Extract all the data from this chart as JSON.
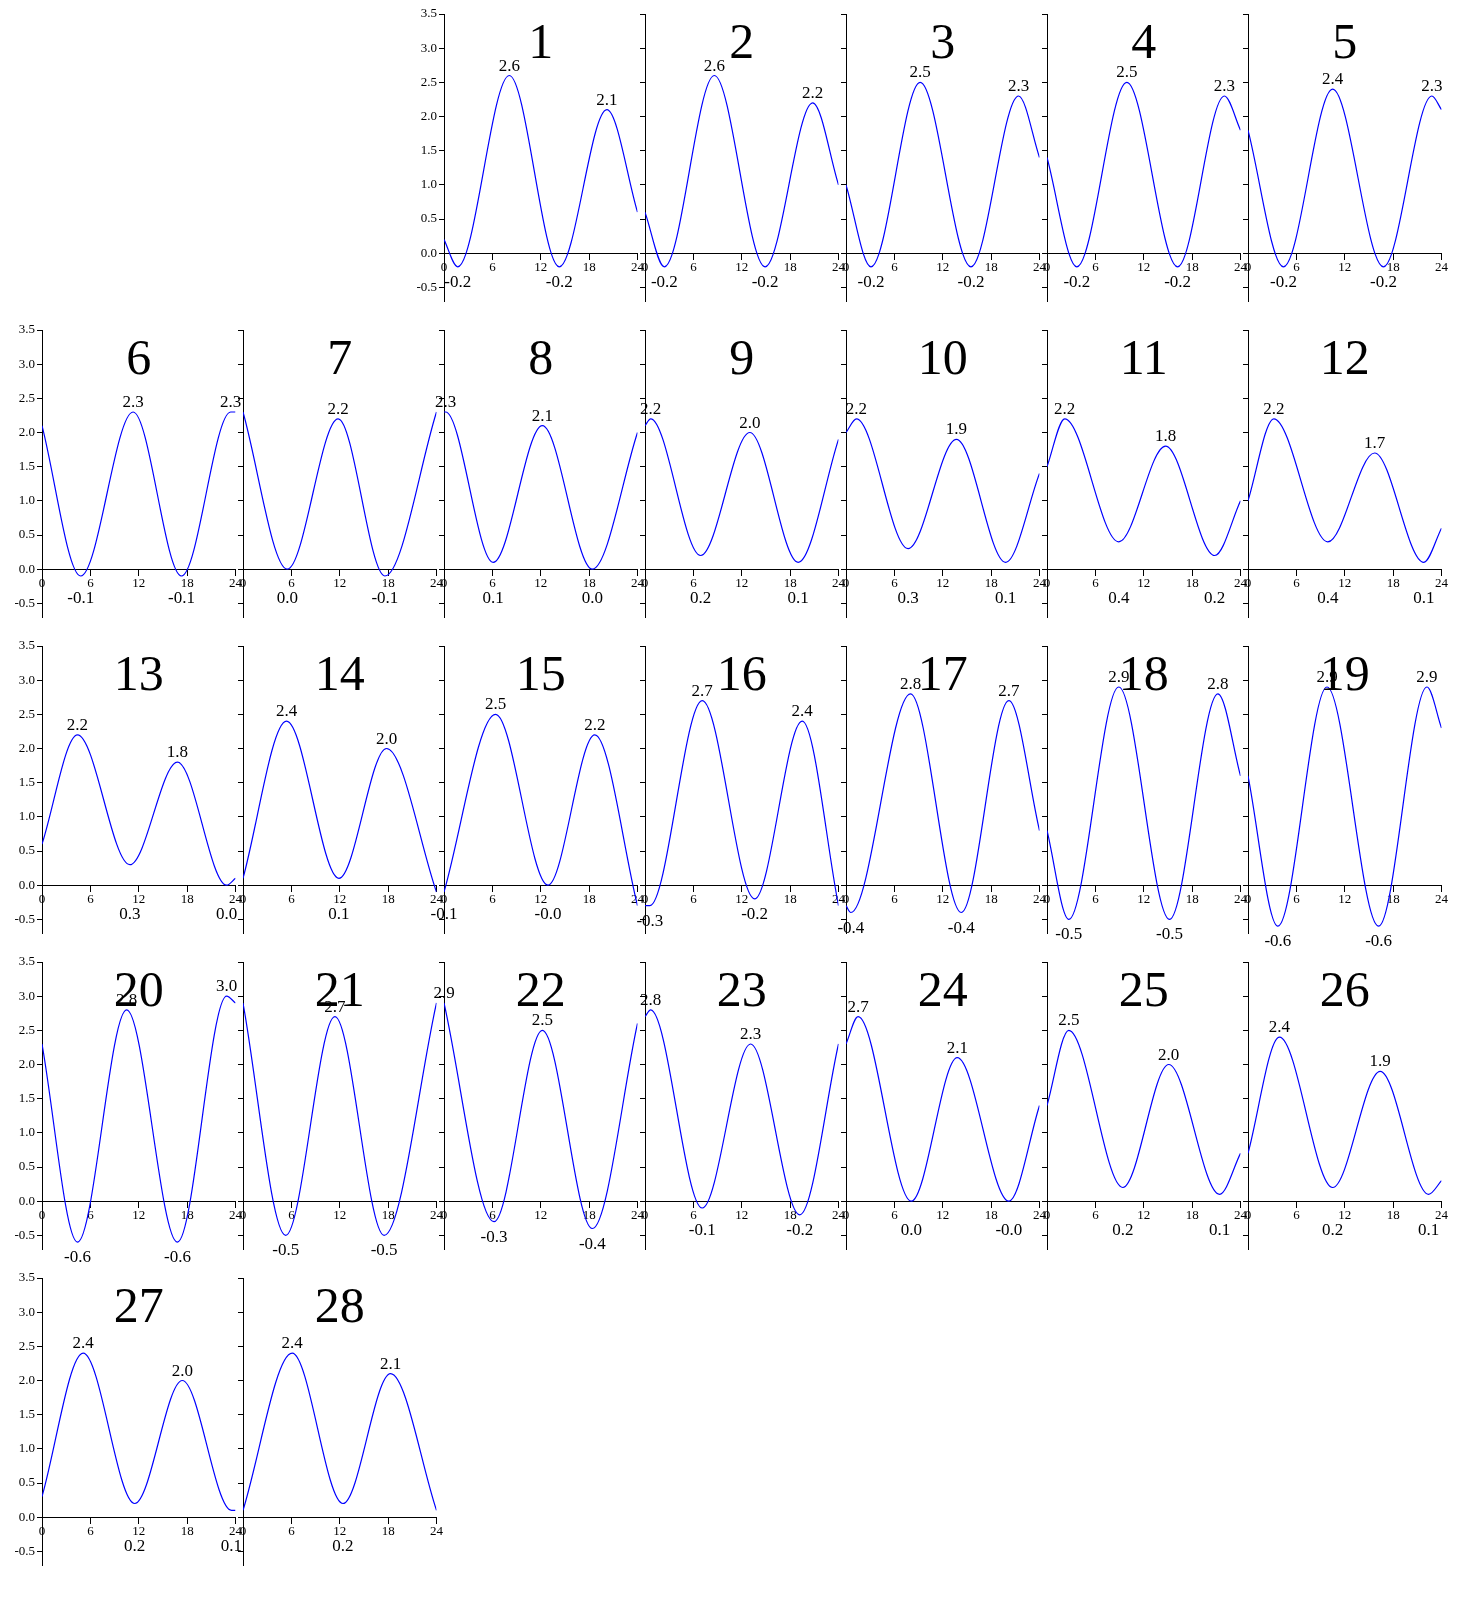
{
  "chart_data": [
    {
      "type": "line",
      "title": "1",
      "x": [
        0,
        1.7,
        8.1,
        14.3,
        20.2,
        24
      ],
      "values": [
        0.2,
        -0.2,
        2.6,
        -0.2,
        2.1,
        0.6
      ],
      "value_labels": [
        null,
        "-0.2",
        "2.6",
        "-0.2",
        "2.1",
        null
      ],
      "color": "#0000ff",
      "xlim": [
        0,
        24
      ],
      "xticks": [
        0,
        6,
        12,
        18,
        24
      ],
      "ylim": [
        -0.7,
        3.5
      ],
      "yticks": [
        {
          "value": -0.5,
          "label": "-0.5"
        },
        {
          "value": 0,
          "label": "0.0"
        },
        {
          "value": 0.5,
          "label": "0.5"
        },
        {
          "value": 1,
          "label": "1.0"
        },
        {
          "value": 1.5,
          "label": "1.5"
        },
        {
          "value": 2,
          "label": "2.0"
        },
        {
          "value": 2.5,
          "label": "2.5"
        },
        {
          "value": 3,
          "label": "3.0"
        },
        {
          "value": 3.5,
          "label": "3.5"
        }
      ]
    },
    {
      "type": "line",
      "title": "2",
      "x": [
        0,
        2.4,
        8.6,
        14.9,
        20.8,
        24
      ],
      "values": [
        0.6,
        -0.2,
        2.6,
        -0.2,
        2.2,
        1.0
      ],
      "value_labels": [
        null,
        "-0.2",
        "2.6",
        "-0.2",
        "2.2",
        null
      ],
      "color": "#0000ff",
      "xlim": [
        0,
        24
      ],
      "xticks": [
        0,
        6,
        12,
        18,
        24
      ],
      "ylim": [
        -0.7,
        3.5
      ],
      "yticks": [
        {
          "value": -0.5,
          "label": null
        },
        {
          "value": 0,
          "label": null
        },
        {
          "value": 0.5,
          "label": null
        },
        {
          "value": 1,
          "label": null
        },
        {
          "value": 1.5,
          "label": null
        },
        {
          "value": 2,
          "label": null
        },
        {
          "value": 2.5,
          "label": null
        },
        {
          "value": 3,
          "label": null
        },
        {
          "value": 3.5,
          "label": null
        }
      ],
      "tick_labels": "x"
    },
    {
      "type": "line",
      "title": "3",
      "x": [
        0,
        3.1,
        9.2,
        15.5,
        21.4,
        24
      ],
      "values": [
        1.0,
        -0.2,
        2.5,
        -0.2,
        2.3,
        1.4
      ],
      "value_labels": [
        null,
        "-0.2",
        "2.5",
        "-0.2",
        "2.3",
        null
      ],
      "color": "#0000ff",
      "xlim": [
        0,
        24
      ],
      "xticks": [
        0,
        6,
        12,
        18,
        24
      ],
      "ylim": [
        -0.7,
        3.5
      ],
      "yticks": [
        {
          "value": -0.5,
          "label": null
        },
        {
          "value": 0,
          "label": null
        },
        {
          "value": 0.5,
          "label": null
        },
        {
          "value": 1,
          "label": null
        },
        {
          "value": 1.5,
          "label": null
        },
        {
          "value": 2,
          "label": null
        },
        {
          "value": 2.5,
          "label": null
        },
        {
          "value": 3,
          "label": null
        },
        {
          "value": 3.5,
          "label": null
        }
      ],
      "tick_labels": "x"
    },
    {
      "type": "line",
      "title": "4",
      "x": [
        0,
        3.7,
        9.9,
        16.2,
        22.0,
        24
      ],
      "values": [
        1.4,
        -0.2,
        2.5,
        -0.2,
        2.3,
        1.8
      ],
      "value_labels": [
        null,
        "-0.2",
        "2.5",
        "-0.2",
        "2.3",
        null
      ],
      "color": "#0000ff",
      "xlim": [
        0,
        24
      ],
      "xticks": [
        0,
        6,
        12,
        18,
        24
      ],
      "ylim": [
        -0.7,
        3.5
      ],
      "yticks": [
        {
          "value": -0.5,
          "label": null
        },
        {
          "value": 0,
          "label": null
        },
        {
          "value": 0.5,
          "label": null
        },
        {
          "value": 1,
          "label": null
        },
        {
          "value": 1.5,
          "label": null
        },
        {
          "value": 2,
          "label": null
        },
        {
          "value": 2.5,
          "label": null
        },
        {
          "value": 3,
          "label": null
        },
        {
          "value": 3.5,
          "label": null
        }
      ],
      "tick_labels": "x"
    },
    {
      "type": "line",
      "title": "5",
      "x": [
        0,
        4.4,
        10.5,
        16.8,
        22.8,
        24
      ],
      "values": [
        1.8,
        -0.2,
        2.4,
        -0.2,
        2.3,
        2.1
      ],
      "value_labels": [
        null,
        "-0.2",
        "2.4",
        "-0.2",
        "2.3",
        null
      ],
      "color": "#0000ff",
      "xlim": [
        0,
        24
      ],
      "xticks": [
        0,
        6,
        12,
        18,
        24
      ],
      "ylim": [
        -0.7,
        3.5
      ],
      "yticks": [
        {
          "value": -0.5,
          "label": null
        },
        {
          "value": 0,
          "label": null
        },
        {
          "value": 0.5,
          "label": null
        },
        {
          "value": 1,
          "label": null
        },
        {
          "value": 1.5,
          "label": null
        },
        {
          "value": 2,
          "label": null
        },
        {
          "value": 2.5,
          "label": null
        },
        {
          "value": 3,
          "label": null
        },
        {
          "value": 3.5,
          "label": null
        }
      ],
      "tick_labels": "x"
    },
    {
      "type": "line",
      "title": "6",
      "x": [
        0,
        4.8,
        11.3,
        17.3,
        23.4,
        24
      ],
      "values": [
        2.1,
        -0.1,
        2.3,
        -0.1,
        2.3,
        2.3
      ],
      "value_labels": [
        null,
        "-0.1",
        "2.3",
        "-0.1",
        "2.3",
        null
      ],
      "color": "#0000ff",
      "xlim": [
        0,
        24
      ],
      "xticks": [
        0,
        6,
        12,
        18,
        24
      ],
      "ylim": [
        -0.7,
        3.5
      ],
      "yticks": [
        {
          "value": -0.5,
          "label": "-0.5"
        },
        {
          "value": 0,
          "label": "0.0"
        },
        {
          "value": 0.5,
          "label": "0.5"
        },
        {
          "value": 1,
          "label": "1.0"
        },
        {
          "value": 1.5,
          "label": "1.5"
        },
        {
          "value": 2,
          "label": "2.0"
        },
        {
          "value": 2.5,
          "label": "2.5"
        },
        {
          "value": 3,
          "label": "3.0"
        },
        {
          "value": 3.5,
          "label": "3.5"
        }
      ]
    },
    {
      "type": "line",
      "title": "7",
      "x": [
        0,
        5.5,
        11.8,
        17.6,
        24
      ],
      "values": [
        2.3,
        0.0,
        2.2,
        -0.1,
        2.3
      ],
      "value_labels": [
        null,
        "0.0",
        "2.2",
        "-0.1",
        null
      ],
      "color": "#0000ff",
      "xlim": [
        0,
        24
      ],
      "xticks": [
        0,
        6,
        12,
        18,
        24
      ],
      "ylim": [
        -0.7,
        3.5
      ],
      "yticks": [
        {
          "value": -0.5,
          "label": null
        },
        {
          "value": 0,
          "label": null
        },
        {
          "value": 0.5,
          "label": null
        },
        {
          "value": 1,
          "label": null
        },
        {
          "value": 1.5,
          "label": null
        },
        {
          "value": 2,
          "label": null
        },
        {
          "value": 2.5,
          "label": null
        },
        {
          "value": 3,
          "label": null
        },
        {
          "value": 3.5,
          "label": null
        }
      ],
      "tick_labels": "x"
    },
    {
      "type": "line",
      "title": "8",
      "x": [
        0,
        0.2,
        6.1,
        12.2,
        18.4,
        24
      ],
      "values": [
        2.3,
        2.3,
        0.1,
        2.1,
        0.0,
        2.0
      ],
      "value_labels": [
        null,
        "2.3",
        "0.1",
        "2.1",
        "0.0",
        null
      ],
      "color": "#0000ff",
      "xlim": [
        0,
        24
      ],
      "xticks": [
        0,
        6,
        12,
        18,
        24
      ],
      "ylim": [
        -0.7,
        3.5
      ],
      "yticks": [
        {
          "value": -0.5,
          "label": null
        },
        {
          "value": 0,
          "label": null
        },
        {
          "value": 0.5,
          "label": null
        },
        {
          "value": 1,
          "label": null
        },
        {
          "value": 1.5,
          "label": null
        },
        {
          "value": 2,
          "label": null
        },
        {
          "value": 2.5,
          "label": null
        },
        {
          "value": 3,
          "label": null
        },
        {
          "value": 3.5,
          "label": null
        }
      ],
      "tick_labels": "x"
    },
    {
      "type": "line",
      "title": "9",
      "x": [
        0,
        0.7,
        6.9,
        13.0,
        19.0,
        24
      ],
      "values": [
        2.1,
        2.2,
        0.2,
        2.0,
        0.1,
        1.9
      ],
      "value_labels": [
        null,
        "2.2",
        "0.2",
        "2.0",
        "0.1",
        null
      ],
      "color": "#0000ff",
      "xlim": [
        0,
        24
      ],
      "xticks": [
        0,
        6,
        12,
        18,
        24
      ],
      "ylim": [
        -0.7,
        3.5
      ],
      "yticks": [
        {
          "value": -0.5,
          "label": null
        },
        {
          "value": 0,
          "label": null
        },
        {
          "value": 0.5,
          "label": null
        },
        {
          "value": 1,
          "label": null
        },
        {
          "value": 1.5,
          "label": null
        },
        {
          "value": 2,
          "label": null
        },
        {
          "value": 2.5,
          "label": null
        },
        {
          "value": 3,
          "label": null
        },
        {
          "value": 3.5,
          "label": null
        }
      ],
      "tick_labels": "x"
    },
    {
      "type": "line",
      "title": "10",
      "x": [
        0,
        1.3,
        7.7,
        13.7,
        19.8,
        24
      ],
      "values": [
        2.0,
        2.2,
        0.3,
        1.9,
        0.1,
        1.4
      ],
      "value_labels": [
        null,
        "2.2",
        "0.3",
        "1.9",
        "0.1",
        null
      ],
      "color": "#0000ff",
      "xlim": [
        0,
        24
      ],
      "xticks": [
        0,
        6,
        12,
        18,
        24
      ],
      "ylim": [
        -0.7,
        3.5
      ],
      "yticks": [
        {
          "value": -0.5,
          "label": null
        },
        {
          "value": 0,
          "label": null
        },
        {
          "value": 0.5,
          "label": null
        },
        {
          "value": 1,
          "label": null
        },
        {
          "value": 1.5,
          "label": null
        },
        {
          "value": 2,
          "label": null
        },
        {
          "value": 2.5,
          "label": null
        },
        {
          "value": 3,
          "label": null
        },
        {
          "value": 3.5,
          "label": null
        }
      ],
      "tick_labels": "x"
    },
    {
      "type": "line",
      "title": "11",
      "x": [
        0,
        2.2,
        8.9,
        14.7,
        20.8,
        24
      ],
      "values": [
        1.5,
        2.2,
        0.4,
        1.8,
        0.2,
        1.0
      ],
      "value_labels": [
        null,
        "2.2",
        "0.4",
        "1.8",
        "0.2",
        null
      ],
      "color": "#0000ff",
      "xlim": [
        0,
        24
      ],
      "xticks": [
        0,
        6,
        12,
        18,
        24
      ],
      "ylim": [
        -0.7,
        3.5
      ],
      "yticks": [
        {
          "value": -0.5,
          "label": null
        },
        {
          "value": 0,
          "label": null
        },
        {
          "value": 0.5,
          "label": null
        },
        {
          "value": 1,
          "label": null
        },
        {
          "value": 1.5,
          "label": null
        },
        {
          "value": 2,
          "label": null
        },
        {
          "value": 2.5,
          "label": null
        },
        {
          "value": 3,
          "label": null
        },
        {
          "value": 3.5,
          "label": null
        }
      ],
      "tick_labels": "x"
    },
    {
      "type": "line",
      "title": "12",
      "x": [
        0,
        3.2,
        9.9,
        15.7,
        21.8,
        24
      ],
      "values": [
        1.0,
        2.2,
        0.4,
        1.7,
        0.1,
        0.6
      ],
      "value_labels": [
        null,
        "2.2",
        "0.4",
        "1.7",
        "0.1",
        null
      ],
      "color": "#0000ff",
      "xlim": [
        0,
        24
      ],
      "xticks": [
        0,
        6,
        12,
        18,
        24
      ],
      "ylim": [
        -0.7,
        3.5
      ],
      "yticks": [
        {
          "value": -0.5,
          "label": null
        },
        {
          "value": 0,
          "label": null
        },
        {
          "value": 0.5,
          "label": null
        },
        {
          "value": 1,
          "label": null
        },
        {
          "value": 1.5,
          "label": null
        },
        {
          "value": 2,
          "label": null
        },
        {
          "value": 2.5,
          "label": null
        },
        {
          "value": 3,
          "label": null
        },
        {
          "value": 3.5,
          "label": null
        }
      ],
      "tick_labels": "x"
    },
    {
      "type": "line",
      "title": "13",
      "x": [
        0,
        4.4,
        10.9,
        16.8,
        22.9,
        24
      ],
      "values": [
        0.6,
        2.2,
        0.3,
        1.8,
        0.0,
        0.1
      ],
      "value_labels": [
        null,
        "2.2",
        "0.3",
        "1.8",
        "0.0",
        null
      ],
      "color": "#0000ff",
      "xlim": [
        0,
        24
      ],
      "xticks": [
        0,
        6,
        12,
        18,
        24
      ],
      "ylim": [
        -0.7,
        3.5
      ],
      "yticks": [
        {
          "value": -0.5,
          "label": "-0.5"
        },
        {
          "value": 0,
          "label": "0.0"
        },
        {
          "value": 0.5,
          "label": "0.5"
        },
        {
          "value": 1,
          "label": "1.0"
        },
        {
          "value": 1.5,
          "label": "1.5"
        },
        {
          "value": 2,
          "label": "2.0"
        },
        {
          "value": 2.5,
          "label": "2.5"
        },
        {
          "value": 3,
          "label": "3.0"
        },
        {
          "value": 3.5,
          "label": "3.5"
        }
      ]
    },
    {
      "type": "line",
      "title": "14",
      "x": [
        0,
        5.4,
        11.9,
        17.8,
        24
      ],
      "values": [
        0.1,
        2.4,
        0.1,
        2.0,
        -0.1
      ],
      "value_labels": [
        null,
        "2.4",
        "0.1",
        "2.0",
        null
      ],
      "color": "#0000ff",
      "xlim": [
        0,
        24
      ],
      "xticks": [
        0,
        6,
        12,
        18,
        24
      ],
      "ylim": [
        -0.7,
        3.5
      ],
      "yticks": [
        {
          "value": -0.5,
          "label": null
        },
        {
          "value": 0,
          "label": null
        },
        {
          "value": 0.5,
          "label": null
        },
        {
          "value": 1,
          "label": null
        },
        {
          "value": 1.5,
          "label": null
        },
        {
          "value": 2,
          "label": null
        },
        {
          "value": 2.5,
          "label": null
        },
        {
          "value": 3,
          "label": null
        },
        {
          "value": 3.5,
          "label": null
        }
      ],
      "tick_labels": "x"
    },
    {
      "type": "line",
      "title": "15",
      "x": [
        0,
        6.4,
        12.9,
        18.7,
        24
      ],
      "values": [
        -0.1,
        2.5,
        -0.0,
        2.2,
        -0.3
      ],
      "value_labels": [
        "-0.1",
        "2.5",
        "-0.0",
        "2.2",
        null
      ],
      "color": "#0000ff",
      "xlim": [
        0,
        24
      ],
      "xticks": [
        0,
        6,
        12,
        18,
        24
      ],
      "ylim": [
        -0.7,
        3.5
      ],
      "yticks": [
        {
          "value": -0.5,
          "label": null
        },
        {
          "value": 0,
          "label": null
        },
        {
          "value": 0.5,
          "label": null
        },
        {
          "value": 1,
          "label": null
        },
        {
          "value": 1.5,
          "label": null
        },
        {
          "value": 2,
          "label": null
        },
        {
          "value": 2.5,
          "label": null
        },
        {
          "value": 3,
          "label": null
        },
        {
          "value": 3.5,
          "label": null
        }
      ],
      "tick_labels": "x"
    },
    {
      "type": "line",
      "title": "16",
      "x": [
        0,
        0.6,
        7.1,
        13.6,
        19.5,
        24
      ],
      "values": [
        -0.3,
        -0.3,
        2.7,
        -0.2,
        2.4,
        -0.3
      ],
      "value_labels": [
        null,
        "-0.3",
        "2.7",
        "-0.2",
        "2.4",
        null
      ],
      "color": "#0000ff",
      "xlim": [
        0,
        24
      ],
      "xticks": [
        0,
        6,
        12,
        18,
        24
      ],
      "ylim": [
        -0.7,
        3.5
      ],
      "yticks": [
        {
          "value": -0.5,
          "label": null
        },
        {
          "value": 0,
          "label": null
        },
        {
          "value": 0.5,
          "label": null
        },
        {
          "value": 1,
          "label": null
        },
        {
          "value": 1.5,
          "label": null
        },
        {
          "value": 2,
          "label": null
        },
        {
          "value": 2.5,
          "label": null
        },
        {
          "value": 3,
          "label": null
        },
        {
          "value": 3.5,
          "label": null
        }
      ],
      "tick_labels": "x"
    },
    {
      "type": "line",
      "title": "17",
      "x": [
        0,
        0.6,
        8.0,
        14.3,
        20.2,
        24
      ],
      "values": [
        -0.3,
        -0.4,
        2.8,
        -0.4,
        2.7,
        0.8
      ],
      "value_labels": [
        null,
        "-0.4",
        "2.8",
        "-0.4",
        "2.7",
        null
      ],
      "color": "#0000ff",
      "xlim": [
        0,
        24
      ],
      "xticks": [
        0,
        6,
        12,
        18,
        24
      ],
      "ylim": [
        -0.7,
        3.5
      ],
      "yticks": [
        {
          "value": -0.5,
          "label": null
        },
        {
          "value": 0,
          "label": null
        },
        {
          "value": 0.5,
          "label": null
        },
        {
          "value": 1,
          "label": null
        },
        {
          "value": 1.5,
          "label": null
        },
        {
          "value": 2,
          "label": null
        },
        {
          "value": 2.5,
          "label": null
        },
        {
          "value": 3,
          "label": null
        },
        {
          "value": 3.5,
          "label": null
        }
      ],
      "tick_labels": "x"
    },
    {
      "type": "line",
      "title": "18",
      "x": [
        0,
        2.7,
        8.9,
        15.2,
        21.2,
        24
      ],
      "values": [
        0.8,
        -0.5,
        2.9,
        -0.5,
        2.8,
        1.6
      ],
      "value_labels": [
        null,
        "-0.5",
        "2.9",
        "-0.5",
        "2.8",
        null
      ],
      "color": "#0000ff",
      "xlim": [
        0,
        24
      ],
      "xticks": [
        0,
        6,
        12,
        18,
        24
      ],
      "ylim": [
        -0.7,
        3.5
      ],
      "yticks": [
        {
          "value": -0.5,
          "label": null
        },
        {
          "value": 0,
          "label": null
        },
        {
          "value": 0.5,
          "label": null
        },
        {
          "value": 1,
          "label": null
        },
        {
          "value": 1.5,
          "label": null
        },
        {
          "value": 2,
          "label": null
        },
        {
          "value": 2.5,
          "label": null
        },
        {
          "value": 3,
          "label": null
        },
        {
          "value": 3.5,
          "label": null
        }
      ],
      "tick_labels": "x"
    },
    {
      "type": "line",
      "title": "19",
      "x": [
        0,
        3.7,
        9.8,
        16.2,
        22.2,
        24
      ],
      "values": [
        1.6,
        -0.6,
        2.9,
        -0.6,
        2.9,
        2.3
      ],
      "value_labels": [
        null,
        "-0.6",
        "2.9",
        "-0.6",
        "2.9",
        null
      ],
      "color": "#0000ff",
      "xlim": [
        0,
        24
      ],
      "xticks": [
        0,
        6,
        12,
        18,
        24
      ],
      "ylim": [
        -0.7,
        3.5
      ],
      "yticks": [
        {
          "value": -0.5,
          "label": null
        },
        {
          "value": 0,
          "label": null
        },
        {
          "value": 0.5,
          "label": null
        },
        {
          "value": 1,
          "label": null
        },
        {
          "value": 1.5,
          "label": null
        },
        {
          "value": 2,
          "label": null
        },
        {
          "value": 2.5,
          "label": null
        },
        {
          "value": 3,
          "label": null
        },
        {
          "value": 3.5,
          "label": null
        }
      ],
      "tick_labels": "x"
    },
    {
      "type": "line",
      "title": "20",
      "x": [
        0,
        4.4,
        10.5,
        16.8,
        22.9,
        24
      ],
      "values": [
        2.3,
        -0.6,
        2.8,
        -0.6,
        3.0,
        2.9
      ],
      "value_labels": [
        null,
        "-0.6",
        "2.8",
        "-0.6",
        "3.0",
        null
      ],
      "color": "#0000ff",
      "xlim": [
        0,
        24
      ],
      "xticks": [
        0,
        6,
        12,
        18,
        24
      ],
      "ylim": [
        -0.7,
        3.5
      ],
      "yticks": [
        {
          "value": -0.5,
          "label": "-0.5"
        },
        {
          "value": 0,
          "label": "0.0"
        },
        {
          "value": 0.5,
          "label": "0.5"
        },
        {
          "value": 1,
          "label": "1.0"
        },
        {
          "value": 1.5,
          "label": "1.5"
        },
        {
          "value": 2,
          "label": "2.0"
        },
        {
          "value": 2.5,
          "label": "2.5"
        },
        {
          "value": 3,
          "label": "3.0"
        },
        {
          "value": 3.5,
          "label": "3.5"
        }
      ]
    },
    {
      "type": "line",
      "title": "21",
      "x": [
        0,
        5.3,
        11.4,
        17.5,
        24
      ],
      "values": [
        2.9,
        -0.5,
        2.7,
        -0.5,
        2.9
      ],
      "value_labels": [
        null,
        "-0.5",
        "2.7",
        "-0.5",
        null
      ],
      "color": "#0000ff",
      "xlim": [
        0,
        24
      ],
      "xticks": [
        0,
        6,
        12,
        18,
        24
      ],
      "ylim": [
        -0.7,
        3.5
      ],
      "yticks": [
        {
          "value": -0.5,
          "label": null
        },
        {
          "value": 0,
          "label": null
        },
        {
          "value": 0.5,
          "label": null
        },
        {
          "value": 1,
          "label": null
        },
        {
          "value": 1.5,
          "label": null
        },
        {
          "value": 2,
          "label": null
        },
        {
          "value": 2.5,
          "label": null
        },
        {
          "value": 3,
          "label": null
        },
        {
          "value": 3.5,
          "label": null
        }
      ],
      "tick_labels": "x"
    },
    {
      "type": "line",
      "title": "22",
      "x": [
        0,
        6.2,
        12.2,
        18.4,
        24
      ],
      "values": [
        2.9,
        -0.3,
        2.5,
        -0.4,
        2.6
      ],
      "value_labels": [
        "2.9",
        "-0.3",
        "2.5",
        "-0.4",
        null
      ],
      "color": "#0000ff",
      "xlim": [
        0,
        24
      ],
      "xticks": [
        0,
        6,
        12,
        18,
        24
      ],
      "ylim": [
        -0.7,
        3.5
      ],
      "yticks": [
        {
          "value": -0.5,
          "label": null
        },
        {
          "value": 0,
          "label": null
        },
        {
          "value": 0.5,
          "label": null
        },
        {
          "value": 1,
          "label": null
        },
        {
          "value": 1.5,
          "label": null
        },
        {
          "value": 2,
          "label": null
        },
        {
          "value": 2.5,
          "label": null
        },
        {
          "value": 3,
          "label": null
        },
        {
          "value": 3.5,
          "label": null
        }
      ],
      "tick_labels": "x"
    },
    {
      "type": "line",
      "title": "23",
      "x": [
        0,
        0.7,
        7.1,
        13.1,
        19.2,
        24
      ],
      "values": [
        2.7,
        2.8,
        -0.1,
        2.3,
        -0.2,
        2.3
      ],
      "value_labels": [
        null,
        "2.8",
        "-0.1",
        "2.3",
        "-0.2",
        null
      ],
      "color": "#0000ff",
      "xlim": [
        0,
        24
      ],
      "xticks": [
        0,
        6,
        12,
        18,
        24
      ],
      "ylim": [
        -0.7,
        3.5
      ],
      "yticks": [
        {
          "value": -0.5,
          "label": null
        },
        {
          "value": 0,
          "label": null
        },
        {
          "value": 0.5,
          "label": null
        },
        {
          "value": 1,
          "label": null
        },
        {
          "value": 1.5,
          "label": null
        },
        {
          "value": 2,
          "label": null
        },
        {
          "value": 2.5,
          "label": null
        },
        {
          "value": 3,
          "label": null
        },
        {
          "value": 3.5,
          "label": null
        }
      ],
      "tick_labels": "x"
    },
    {
      "type": "line",
      "title": "24",
      "x": [
        0,
        1.5,
        8.1,
        13.8,
        20.2,
        24
      ],
      "values": [
        2.3,
        2.7,
        0.0,
        2.1,
        -0.0,
        1.4
      ],
      "value_labels": [
        null,
        "2.7",
        "0.0",
        "2.1",
        "-0.0",
        null
      ],
      "color": "#0000ff",
      "xlim": [
        0,
        24
      ],
      "xticks": [
        0,
        6,
        12,
        18,
        24
      ],
      "ylim": [
        -0.7,
        3.5
      ],
      "yticks": [
        {
          "value": -0.5,
          "label": null
        },
        {
          "value": 0,
          "label": null
        },
        {
          "value": 0.5,
          "label": null
        },
        {
          "value": 1,
          "label": null
        },
        {
          "value": 1.5,
          "label": null
        },
        {
          "value": 2,
          "label": null
        },
        {
          "value": 2.5,
          "label": null
        },
        {
          "value": 3,
          "label": null
        },
        {
          "value": 3.5,
          "label": null
        }
      ],
      "tick_labels": "x"
    },
    {
      "type": "line",
      "title": "25",
      "x": [
        0,
        2.7,
        9.4,
        15.1,
        21.4,
        24
      ],
      "values": [
        1.4,
        2.5,
        0.2,
        2.0,
        0.1,
        0.7
      ],
      "value_labels": [
        null,
        "2.5",
        "0.2",
        "2.0",
        "0.1",
        null
      ],
      "color": "#0000ff",
      "xlim": [
        0,
        24
      ],
      "xticks": [
        0,
        6,
        12,
        18,
        24
      ],
      "ylim": [
        -0.7,
        3.5
      ],
      "yticks": [
        {
          "value": -0.5,
          "label": null
        },
        {
          "value": 0,
          "label": null
        },
        {
          "value": 0.5,
          "label": null
        },
        {
          "value": 1,
          "label": null
        },
        {
          "value": 1.5,
          "label": null
        },
        {
          "value": 2,
          "label": null
        },
        {
          "value": 2.5,
          "label": null
        },
        {
          "value": 3,
          "label": null
        },
        {
          "value": 3.5,
          "label": null
        }
      ],
      "tick_labels": "x"
    },
    {
      "type": "line",
      "title": "26",
      "x": [
        0,
        3.9,
        10.5,
        16.4,
        22.4,
        24
      ],
      "values": [
        0.7,
        2.4,
        0.2,
        1.9,
        0.1,
        0.3
      ],
      "value_labels": [
        null,
        "2.4",
        "0.2",
        "1.9",
        "0.1",
        null
      ],
      "color": "#0000ff",
      "xlim": [
        0,
        24
      ],
      "xticks": [
        0,
        6,
        12,
        18,
        24
      ],
      "ylim": [
        -0.7,
        3.5
      ],
      "yticks": [
        {
          "value": -0.5,
          "label": null
        },
        {
          "value": 0,
          "label": null
        },
        {
          "value": 0.5,
          "label": null
        },
        {
          "value": 1,
          "label": null
        },
        {
          "value": 1.5,
          "label": null
        },
        {
          "value": 2,
          "label": null
        },
        {
          "value": 2.5,
          "label": null
        },
        {
          "value": 3,
          "label": null
        },
        {
          "value": 3.5,
          "label": null
        }
      ],
      "tick_labels": "x"
    },
    {
      "type": "line",
      "title": "27",
      "x": [
        0,
        5.1,
        11.5,
        17.4,
        23.5,
        24
      ],
      "values": [
        0.3,
        2.4,
        0.2,
        2.0,
        0.1,
        0.1
      ],
      "value_labels": [
        null,
        "2.4",
        "0.2",
        "2.0",
        "0.1",
        null
      ],
      "color": "#0000ff",
      "xlim": [
        0,
        24
      ],
      "xticks": [
        0,
        6,
        12,
        18,
        24
      ],
      "ylim": [
        -0.7,
        3.5
      ],
      "yticks": [
        {
          "value": -0.5,
          "label": "-0.5"
        },
        {
          "value": 0,
          "label": "0.0"
        },
        {
          "value": 0.5,
          "label": "0.5"
        },
        {
          "value": 1,
          "label": "1.0"
        },
        {
          "value": 1.5,
          "label": "1.5"
        },
        {
          "value": 2,
          "label": "2.0"
        },
        {
          "value": 2.5,
          "label": "2.5"
        },
        {
          "value": 3,
          "label": "3.0"
        },
        {
          "value": 3.5,
          "label": "3.5"
        }
      ]
    },
    {
      "type": "line",
      "title": "28",
      "x": [
        0,
        6.1,
        12.4,
        18.3,
        24
      ],
      "values": [
        0.1,
        2.4,
        0.2,
        2.1,
        0.1
      ],
      "value_labels": [
        null,
        "2.4",
        "0.2",
        "2.1",
        null
      ],
      "color": "#0000ff",
      "xlim": [
        0,
        24
      ],
      "xticks": [
        0,
        6,
        12,
        18,
        24
      ],
      "ylim": [
        -0.7,
        3.5
      ],
      "yticks": [
        {
          "value": -0.5,
          "label": null
        },
        {
          "value": 0,
          "label": null
        },
        {
          "value": 0.5,
          "label": null
        },
        {
          "value": 1,
          "label": null
        },
        {
          "value": 1.5,
          "label": null
        },
        {
          "value": 2,
          "label": null
        },
        {
          "value": 2.5,
          "label": null
        },
        {
          "value": 3,
          "label": null
        },
        {
          "value": 3.5,
          "label": null
        }
      ],
      "tick_labels": "x"
    }
  ]
}
